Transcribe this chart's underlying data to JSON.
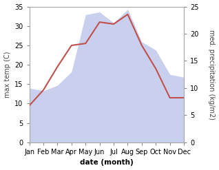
{
  "months": [
    "Jan",
    "Feb",
    "Mar",
    "Apr",
    "May",
    "Jun",
    "Jul",
    "Aug",
    "Sep",
    "Oct",
    "Nov",
    "Dec"
  ],
  "month_indices": [
    0,
    1,
    2,
    3,
    4,
    5,
    6,
    7,
    8,
    9,
    10,
    11
  ],
  "temperature": [
    9.5,
    13.5,
    19.5,
    25.0,
    25.5,
    31.0,
    30.5,
    33.0,
    25.0,
    19.0,
    11.5,
    11.5
  ],
  "precipitation": [
    10.0,
    9.5,
    10.5,
    13.0,
    23.5,
    24.0,
    22.0,
    24.5,
    18.5,
    17.0,
    12.5,
    12.0
  ],
  "temp_color": "#c0504d",
  "precip_fill_color": "#adb8e6",
  "precip_fill_alpha": 0.65,
  "temp_ylim": [
    0,
    35
  ],
  "precip_ylim": [
    0,
    25
  ],
  "temp_yticks": [
    0,
    5,
    10,
    15,
    20,
    25,
    30,
    35
  ],
  "precip_yticks": [
    0,
    5,
    10,
    15,
    20,
    25
  ],
  "xlabel": "date (month)",
  "ylabel_left": "max temp (C)",
  "ylabel_right": "med. precipitation (kg/m2)",
  "bg_color": "#ffffff",
  "axes_color": "#444444",
  "font_size": 7.0
}
